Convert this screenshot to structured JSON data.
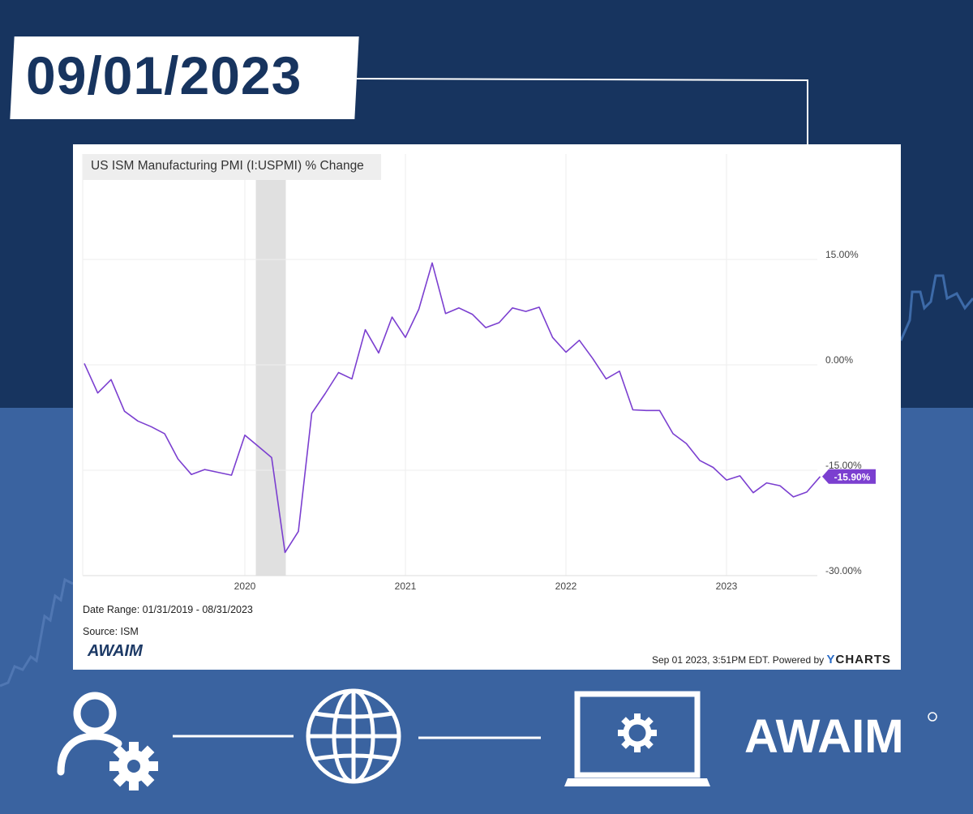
{
  "header": {
    "date": "09/01/2023"
  },
  "chart_data": {
    "type": "line",
    "title": "US ISM Manufacturing PMI (I:USPMI) % Change",
    "date_range": "Date Range: 01/31/2019 - 08/31/2023",
    "source": "Source: ISM",
    "timestamp": "Sep 01 2023, 3:51PM EDT. Powered by",
    "provider": "YCHARTS",
    "ylim": [
      -30,
      30
    ],
    "yticks": [
      15,
      0,
      -15,
      -30
    ],
    "ytick_labels": [
      "15.00%",
      "0.00%",
      "-15.00%",
      "-30.00%"
    ],
    "xtick_labels": [
      "2020",
      "2021",
      "2022",
      "2023"
    ],
    "last_value_label": "-15.90%",
    "shaded_period": [
      "2020-02",
      "2020-04"
    ],
    "series": [
      {
        "color": "#7b3fd0",
        "x": [
          "2019-01",
          "2019-02",
          "2019-03",
          "2019-04",
          "2019-05",
          "2019-06",
          "2019-07",
          "2019-08",
          "2019-09",
          "2019-10",
          "2019-11",
          "2019-12",
          "2020-01",
          "2020-02",
          "2020-03",
          "2020-04",
          "2020-05",
          "2020-06",
          "2020-07",
          "2020-08",
          "2020-09",
          "2020-10",
          "2020-11",
          "2020-12",
          "2021-01",
          "2021-02",
          "2021-03",
          "2021-04",
          "2021-05",
          "2021-06",
          "2021-07",
          "2021-08",
          "2021-09",
          "2021-10",
          "2021-11",
          "2021-12",
          "2022-01",
          "2022-02",
          "2022-03",
          "2022-04",
          "2022-05",
          "2022-06",
          "2022-07",
          "2022-08",
          "2022-09",
          "2022-10",
          "2022-11",
          "2022-12",
          "2023-01",
          "2023-02",
          "2023-03",
          "2023-04",
          "2023-05",
          "2023-06",
          "2023-07",
          "2023-08"
        ],
        "values": [
          0.2,
          -4.0,
          -2.1,
          -6.6,
          -8.0,
          -8.8,
          -9.8,
          -13.4,
          -15.6,
          -14.9,
          -15.3,
          -15.7,
          -10.0,
          -11.6,
          -13.2,
          -26.7,
          -23.7,
          -6.9,
          -4.1,
          -1.1,
          -2.0,
          5.0,
          1.7,
          6.8,
          3.9,
          7.9,
          14.5,
          7.3,
          8.1,
          7.2,
          5.3,
          6.0,
          8.1,
          7.6,
          8.2,
          3.9,
          1.8,
          3.5,
          0.9,
          -2.0,
          -0.9,
          -6.4,
          -6.5,
          -6.5,
          -9.8,
          -11.2,
          -13.6,
          -14.6,
          -16.4,
          -15.8,
          -18.2,
          -16.8,
          -17.2,
          -18.8,
          -18.1,
          -15.9
        ]
      }
    ]
  },
  "brand": {
    "name": "AWAIM"
  }
}
